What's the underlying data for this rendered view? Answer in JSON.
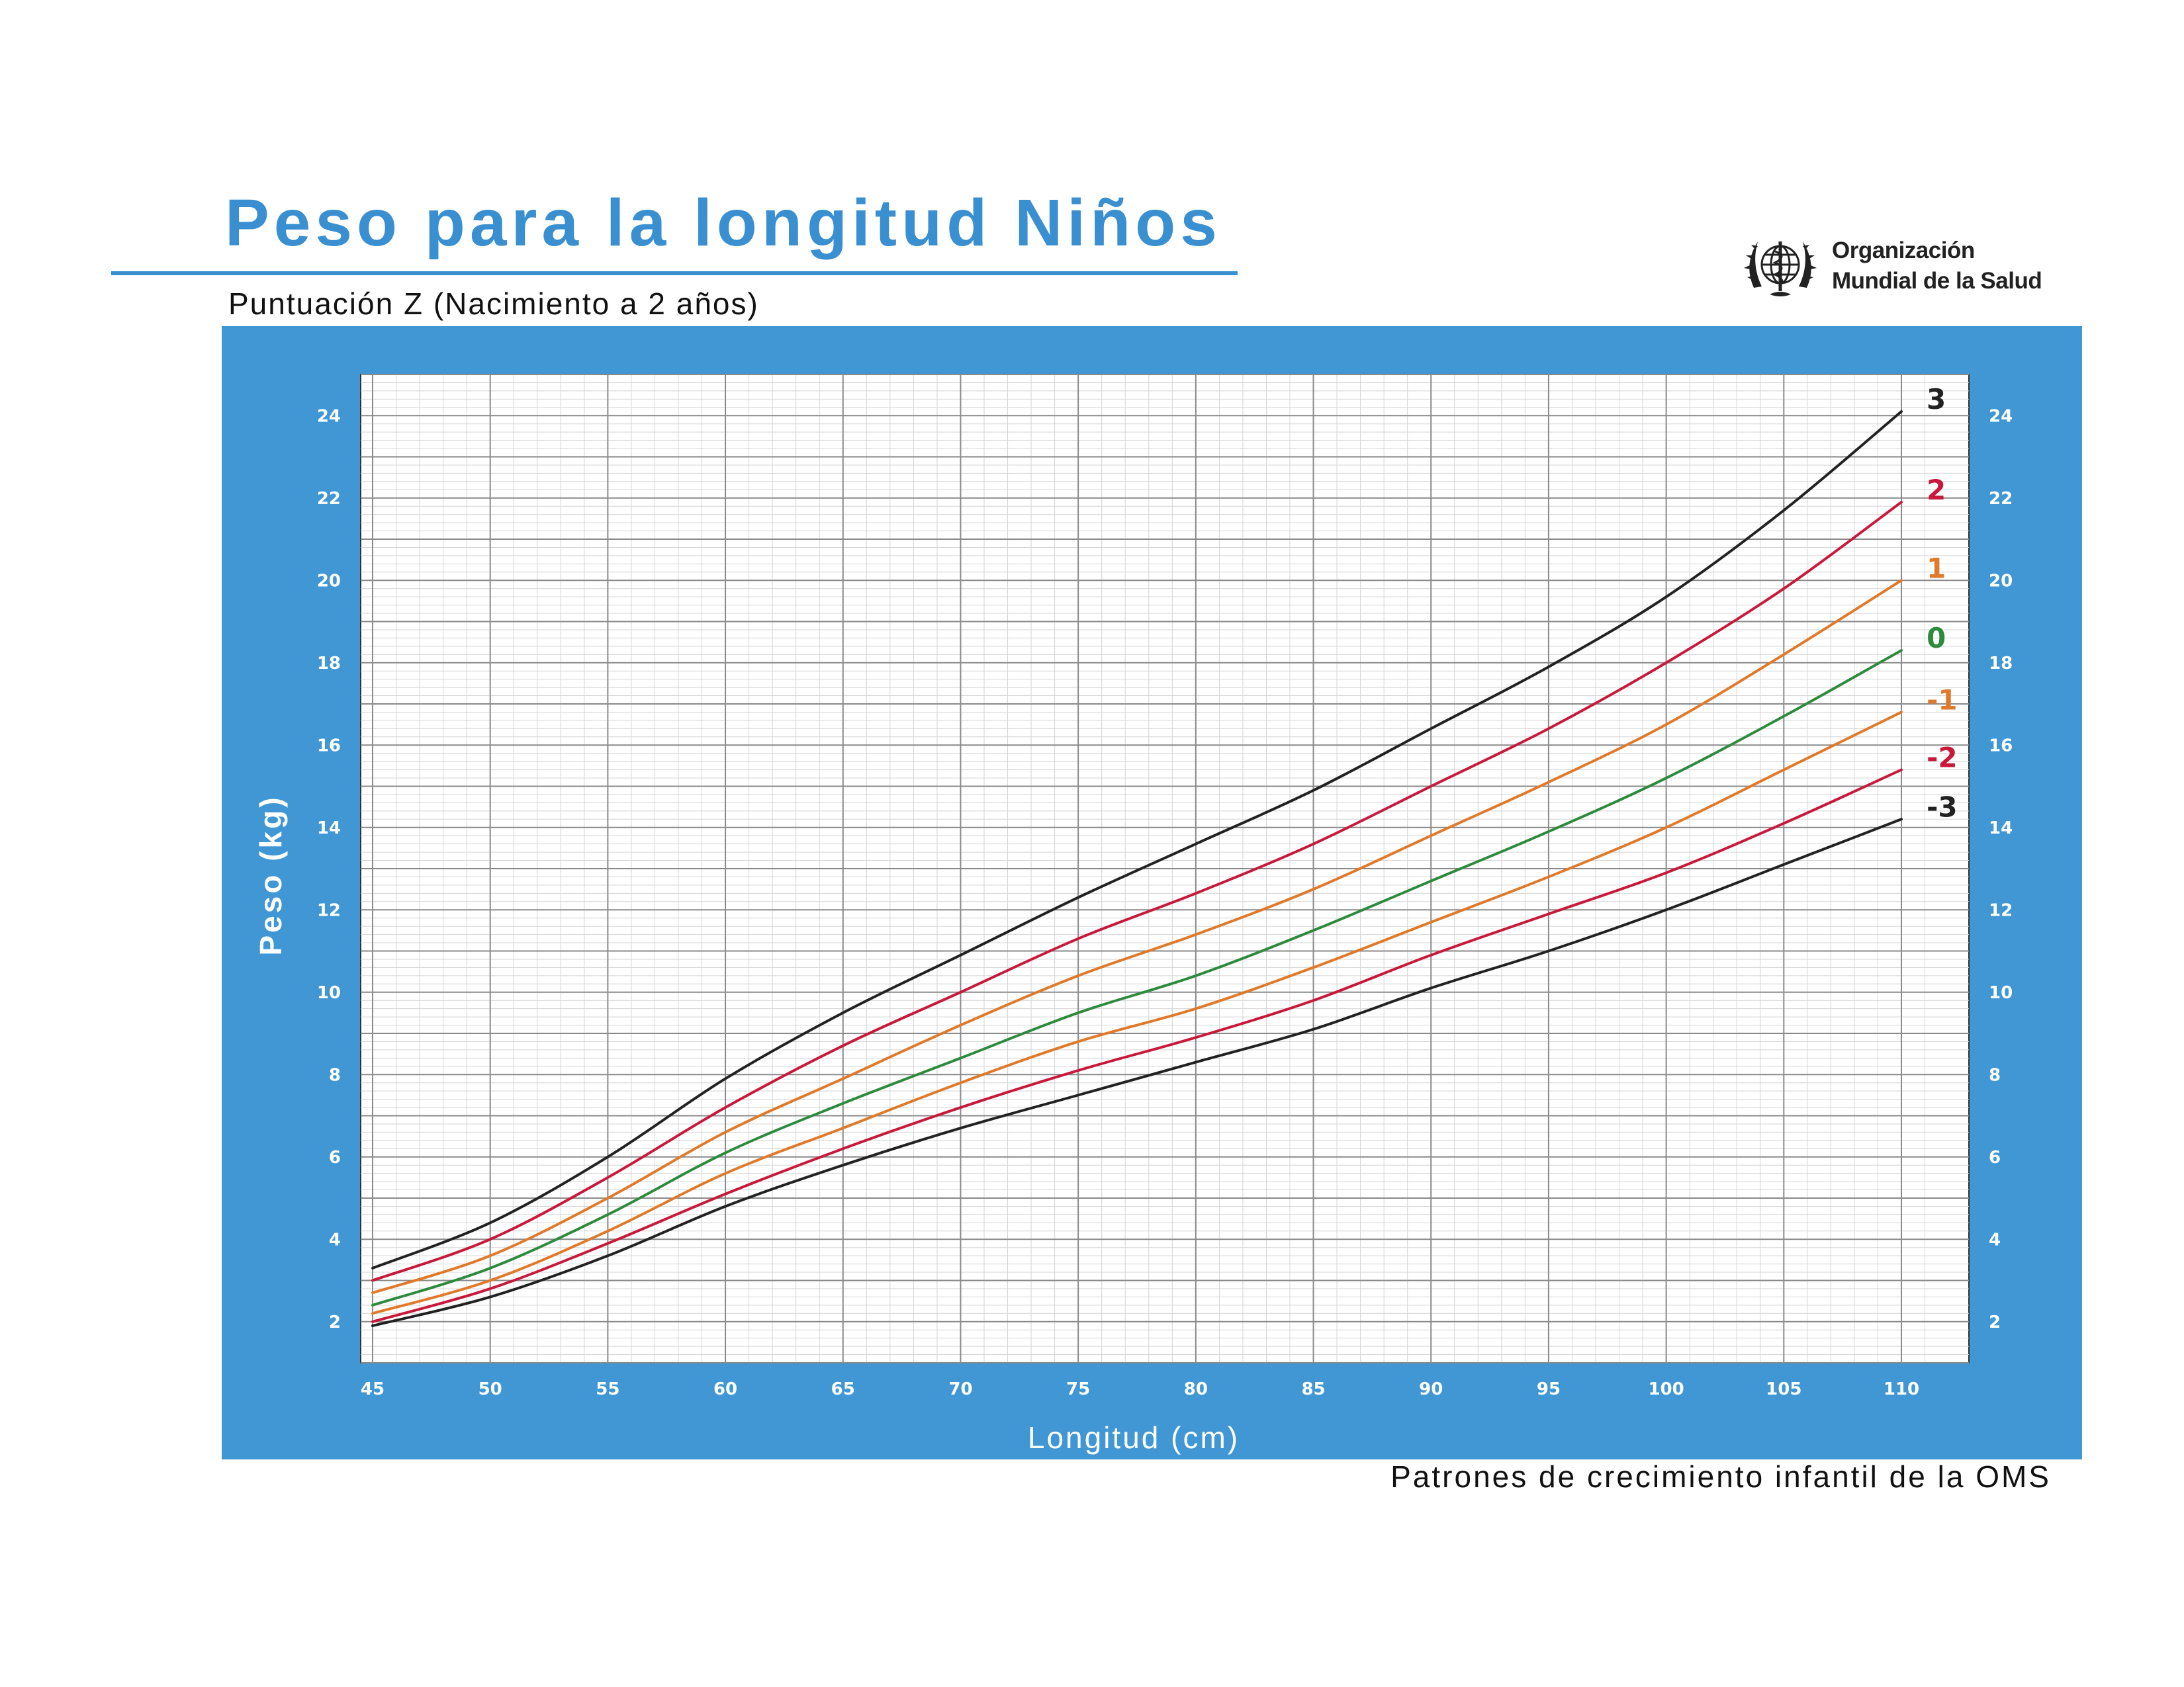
{
  "header": {
    "title": "Peso para la longitud Niños",
    "subtitle": "Puntuación Z (Nacimiento a 2 años)",
    "org_line1": "Organización",
    "org_line2": "Mundial de la Salud",
    "logo_icon": "who-emblem-icon"
  },
  "footer": {
    "source": "Patrones de crecimiento infantil de la OMS"
  },
  "colors": {
    "accent": "#3a8fd1",
    "panel": "#4097d4",
    "plot_bg": "#ffffff",
    "z3": "#222222",
    "z2": "#c8193c",
    "z1": "#e07a2a",
    "z0": "#2e8b3e"
  },
  "chart_data": {
    "type": "line",
    "title": "Peso para la longitud Niños",
    "subtitle": "Puntuación Z (Nacimiento a 2 años)",
    "xlabel": "Longitud (cm)",
    "ylabel": "Peso (kg)",
    "xlim": [
      45,
      110
    ],
    "ylim": [
      1,
      25
    ],
    "x_ticks": [
      45,
      50,
      55,
      60,
      65,
      70,
      75,
      80,
      85,
      90,
      95,
      100,
      105,
      110
    ],
    "y_ticks": [
      2,
      4,
      6,
      8,
      10,
      12,
      14,
      16,
      18,
      20,
      22,
      24
    ],
    "grid": true,
    "x": [
      45,
      50,
      55,
      60,
      65,
      70,
      75,
      80,
      85,
      90,
      95,
      100,
      105,
      110
    ],
    "series": [
      {
        "name": "3",
        "color": "#222222",
        "values": [
          3.3,
          4.4,
          6.0,
          7.9,
          9.5,
          10.9,
          12.3,
          13.6,
          14.9,
          16.4,
          17.9,
          19.6,
          21.7,
          24.1
        ]
      },
      {
        "name": "2",
        "color": "#c8193c",
        "values": [
          3.0,
          4.0,
          5.5,
          7.2,
          8.7,
          10.0,
          11.3,
          12.4,
          13.6,
          15.0,
          16.4,
          18.0,
          19.8,
          21.9
        ]
      },
      {
        "name": "1",
        "color": "#e07a2a",
        "values": [
          2.7,
          3.6,
          5.0,
          6.6,
          7.9,
          9.2,
          10.4,
          11.4,
          12.5,
          13.8,
          15.1,
          16.5,
          18.2,
          20.0
        ]
      },
      {
        "name": "0",
        "color": "#2e8b3e",
        "values": [
          2.4,
          3.3,
          4.6,
          6.1,
          7.3,
          8.4,
          9.5,
          10.4,
          11.5,
          12.7,
          13.9,
          15.2,
          16.7,
          18.3
        ]
      },
      {
        "name": "-1",
        "color": "#e07a2a",
        "values": [
          2.2,
          3.0,
          4.2,
          5.6,
          6.7,
          7.8,
          8.8,
          9.6,
          10.6,
          11.7,
          12.8,
          14.0,
          15.4,
          16.8
        ]
      },
      {
        "name": "-2",
        "color": "#c8193c",
        "values": [
          2.0,
          2.8,
          3.9,
          5.1,
          6.2,
          7.2,
          8.1,
          8.9,
          9.8,
          10.9,
          11.9,
          12.9,
          14.1,
          15.4
        ]
      },
      {
        "name": "-3",
        "color": "#222222",
        "values": [
          1.9,
          2.6,
          3.6,
          4.8,
          5.8,
          6.7,
          7.5,
          8.3,
          9.1,
          10.1,
          11.0,
          12.0,
          13.1,
          14.2
        ]
      }
    ]
  }
}
